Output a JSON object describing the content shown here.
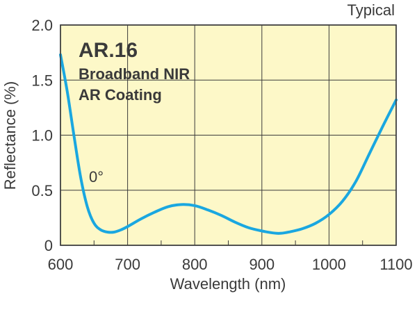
{
  "chart_data": {
    "type": "line",
    "corner_label": "Typical",
    "title": "AR.16",
    "subtitle_lines": [
      "Broadband NIR",
      "AR Coating"
    ],
    "xlabel": "Wavelength (nm)",
    "ylabel": "Reflectance (%)",
    "xlim": [
      600,
      1100
    ],
    "ylim": [
      0,
      2.0
    ],
    "x_ticks": [
      600,
      700,
      800,
      900,
      1000,
      1100
    ],
    "y_ticks": [
      "0",
      "0.5",
      "1.0",
      "1.5",
      "2.0"
    ],
    "y_tick_values": [
      0,
      0.5,
      1.0,
      1.5,
      2.0
    ],
    "grid": true,
    "background_color": "#fdf8c8",
    "line_color": "#1aa7e0",
    "series": [
      {
        "annotation": "0°",
        "x": [
          600,
          610,
          620,
          630,
          640,
          650,
          660,
          670,
          680,
          690,
          700,
          720,
          740,
          760,
          780,
          800,
          820,
          840,
          860,
          880,
          900,
          920,
          930,
          940,
          960,
          980,
          1000,
          1020,
          1040,
          1060,
          1080,
          1100
        ],
        "y": [
          1.73,
          1.4,
          1.0,
          0.62,
          0.35,
          0.2,
          0.14,
          0.12,
          0.12,
          0.14,
          0.17,
          0.24,
          0.3,
          0.35,
          0.37,
          0.36,
          0.32,
          0.27,
          0.21,
          0.16,
          0.13,
          0.11,
          0.11,
          0.12,
          0.15,
          0.2,
          0.28,
          0.4,
          0.58,
          0.83,
          1.08,
          1.32
        ]
      }
    ]
  }
}
